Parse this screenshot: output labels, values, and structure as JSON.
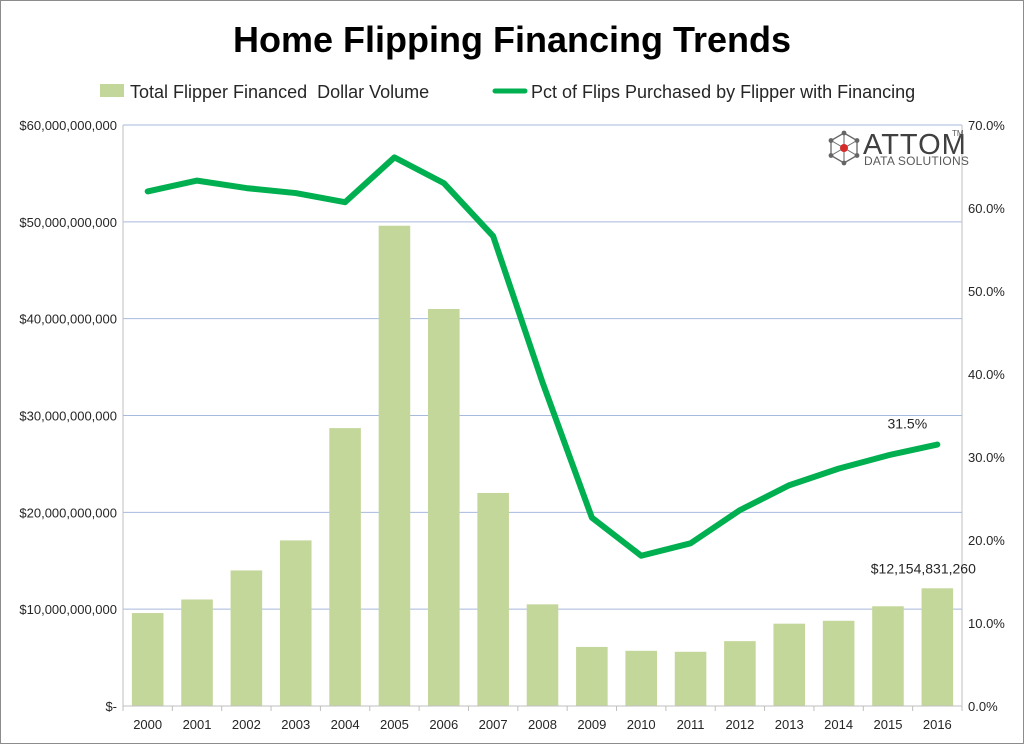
{
  "chart_data": {
    "type": "bar+line",
    "title": "Home Flipping Financing Trends",
    "categories": [
      "2000",
      "2001",
      "2002",
      "2003",
      "2004",
      "2005",
      "2006",
      "2007",
      "2008",
      "2009",
      "2010",
      "2011",
      "2012",
      "2013",
      "2014",
      "2015",
      "2016"
    ],
    "series": [
      {
        "name": "Total Flipper Financed  Dollar Volume",
        "type": "bar",
        "axis": "left",
        "color": "#c4d79b",
        "values": [
          9600000000,
          11000000000,
          14000000000,
          17100000000,
          28700000000,
          49600000000,
          41000000000,
          22000000000,
          10500000000,
          6100000000,
          5700000000,
          5600000000,
          6700000000,
          8500000000,
          8800000000,
          10300000000,
          12154831260
        ]
      },
      {
        "name": "Pct of Flips Purchased by Flipper with Financing",
        "type": "line",
        "axis": "right",
        "color": "#00b050",
        "values": [
          62.0,
          63.3,
          62.4,
          61.8,
          60.7,
          66.1,
          63.0,
          56.6,
          39.0,
          22.7,
          18.1,
          19.6,
          23.6,
          26.6,
          28.6,
          30.2,
          31.5
        ]
      }
    ],
    "left_axis": {
      "min": 0,
      "max": 60000000000,
      "tick_labels": [
        "$-",
        "$10,000,000,000",
        "$20,000,000,000",
        "$30,000,000,000",
        "$40,000,000,000",
        "$50,000,000,000",
        "$60,000,000,000"
      ]
    },
    "right_axis": {
      "min": 0,
      "max": 70,
      "tick_labels": [
        "0.0%",
        "10.0%",
        "20.0%",
        "30.0%",
        "40.0%",
        "50.0%",
        "60.0%",
        "70.0%"
      ]
    },
    "grid": true,
    "legend_position": "top",
    "annotations": [
      {
        "series": 0,
        "index": 16,
        "text": "$12,154,831,260"
      },
      {
        "series": 1,
        "index": 16,
        "text": "31.5%"
      }
    ]
  },
  "logo": {
    "main": "ATTOM",
    "sub": "DATA SOLUTIONS",
    "tm": "TM"
  },
  "colors": {
    "grid": "#a6b9de",
    "axis": "#bfbfbf",
    "bar": "#c4d79b",
    "line": "#00b050"
  }
}
